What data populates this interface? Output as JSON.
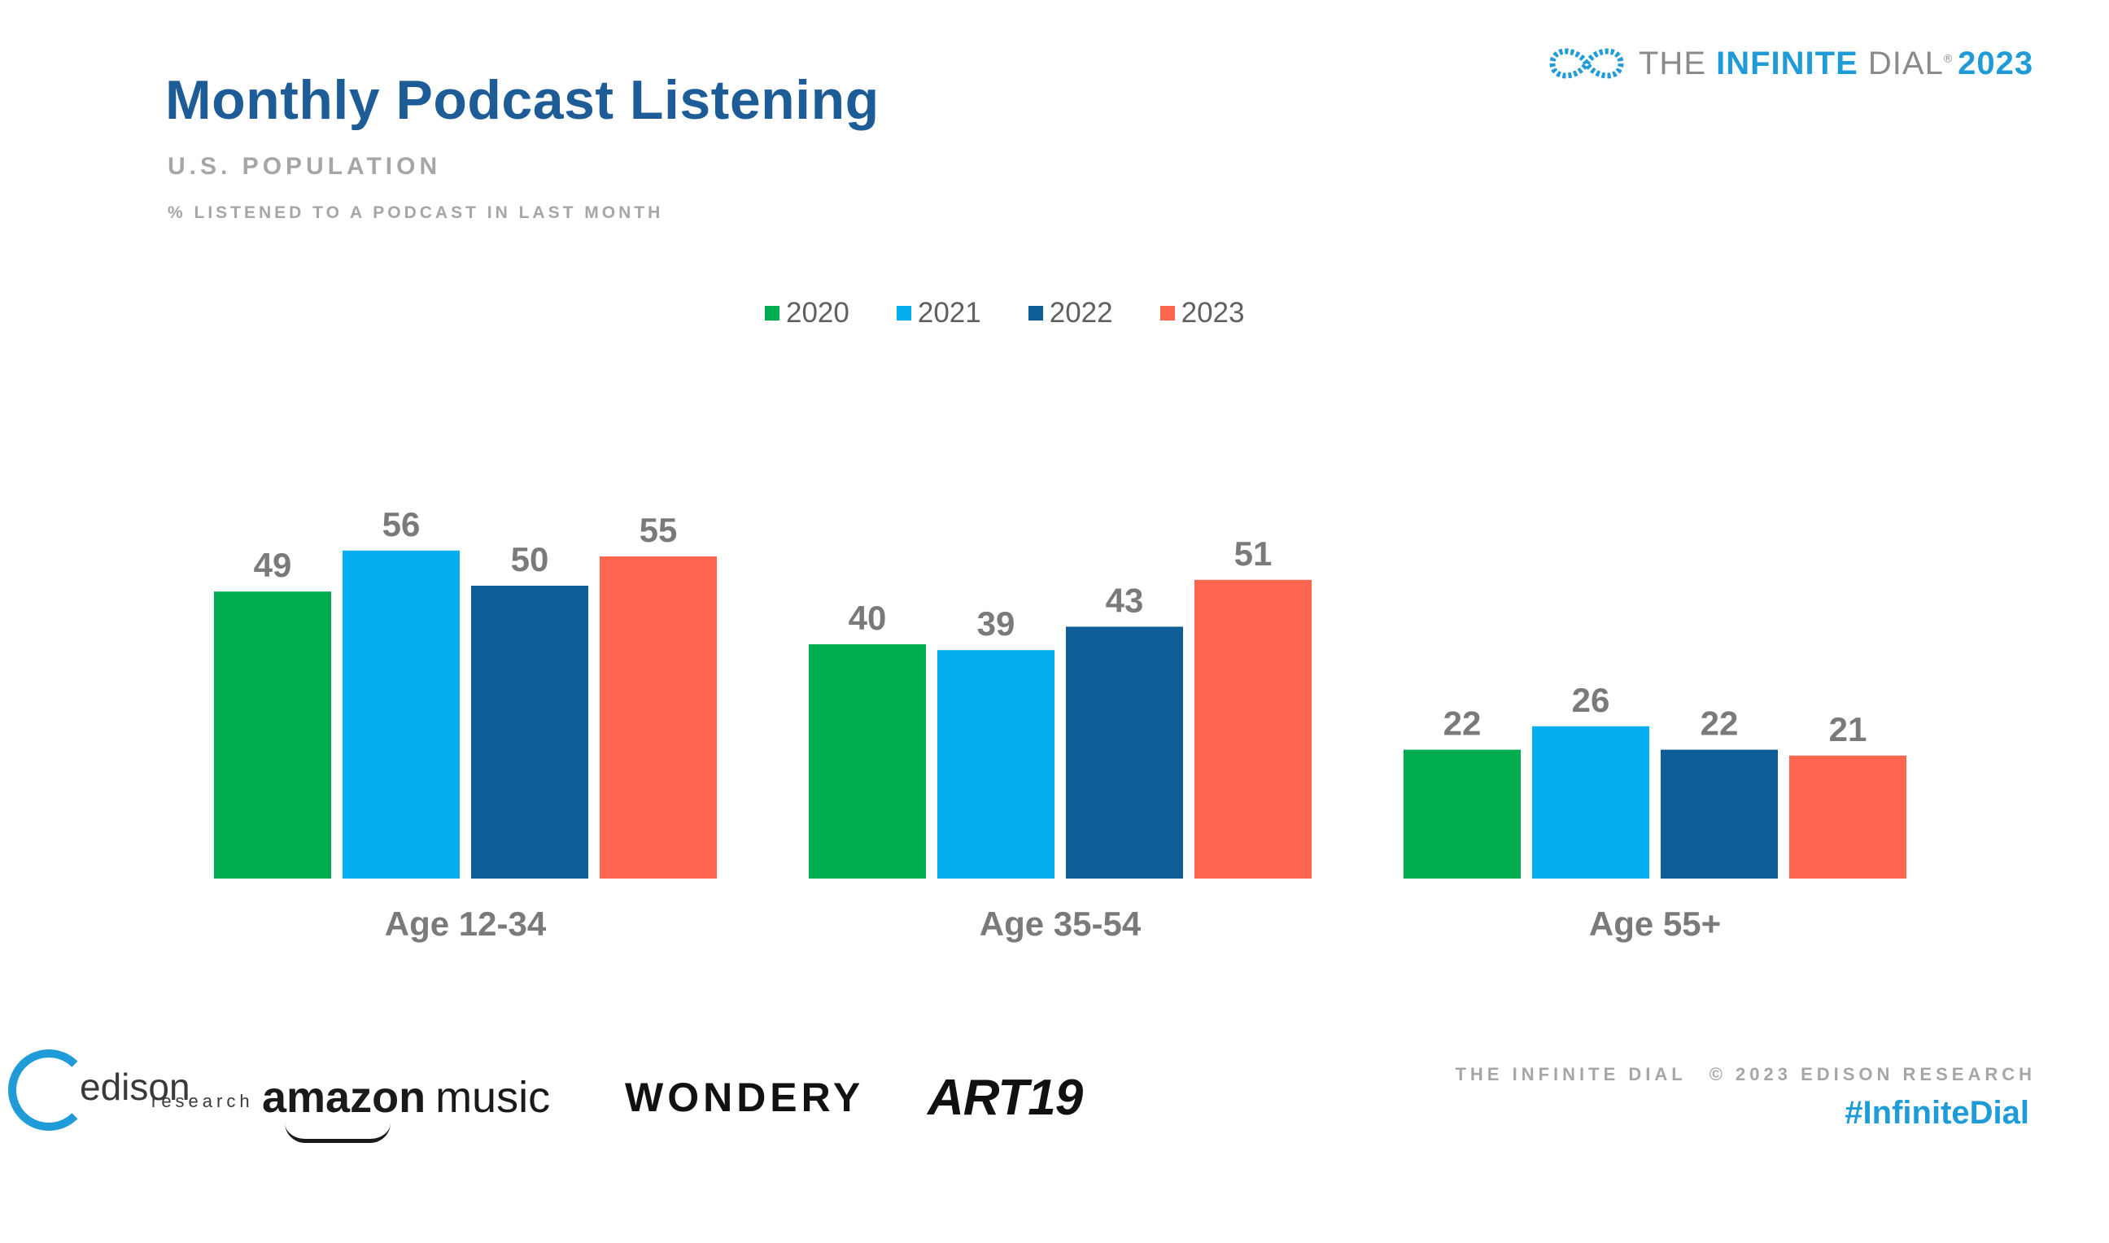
{
  "header": {
    "title": "Monthly Podcast Listening",
    "subtitle": "U.S. POPULATION",
    "subsubtitle": "% LISTENED TO A PODCAST IN LAST MONTH"
  },
  "brand": {
    "prefix": "THE ",
    "highlight": "INFINITE",
    "suffix": " DIAL",
    "registered": "®",
    "year": "2023"
  },
  "chart_data": {
    "type": "bar",
    "categories": [
      "Age 12-34",
      "Age 35-54",
      "Age 55+"
    ],
    "series": [
      {
        "name": "2020",
        "color": "#00ad4e",
        "values": [
          49,
          40,
          22
        ]
      },
      {
        "name": "2021",
        "color": "#04aeef",
        "values": [
          56,
          39,
          26
        ]
      },
      {
        "name": "2022",
        "color": "#0e5d96",
        "values": [
          50,
          43,
          22
        ]
      },
      {
        "name": "2023",
        "color": "#ff6650",
        "values": [
          55,
          51,
          21
        ]
      }
    ],
    "title": "Monthly Podcast Listening",
    "ylim": [
      0,
      100
    ],
    "legend": "top-center",
    "grid": false,
    "data_labels": true
  },
  "footer": {
    "logos": {
      "edison_name": "edison",
      "edison_sub": "research",
      "amazon": "amazon",
      "amazon_music": "music",
      "wondery": "WONDERY",
      "art19": "ART19"
    },
    "credit_left": "THE INFINITE DIAL",
    "credit_right": "© 2023 EDISON RESEARCH",
    "hashtag": "#InfiniteDial"
  }
}
